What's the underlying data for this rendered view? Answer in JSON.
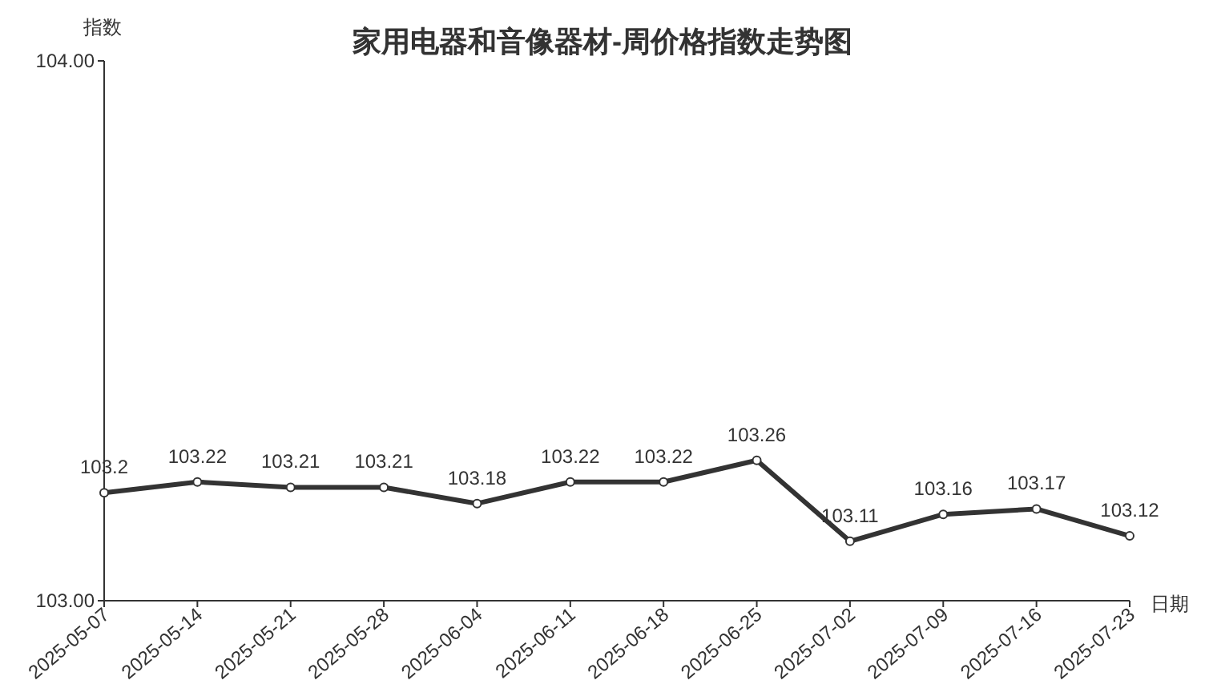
{
  "chart_data": {
    "type": "line",
    "title": "家用电器和音像器材-周价格指数走势图",
    "ylabel": "指数",
    "xlabel": "日期",
    "categories": [
      "2025-05-07",
      "2025-05-14",
      "2025-05-21",
      "2025-05-28",
      "2025-06-04",
      "2025-06-11",
      "2025-06-18",
      "2025-06-25",
      "2025-07-02",
      "2025-07-09",
      "2025-07-16",
      "2025-07-23"
    ],
    "series": [
      {
        "color": "#333333",
        "values": [
          103.2,
          103.22,
          103.21,
          103.21,
          103.18,
          103.22,
          103.22,
          103.26,
          103.11,
          103.16,
          103.17,
          103.12
        ]
      }
    ],
    "ylim": [
      103,
      104
    ],
    "yticks": [
      {
        "value": 103,
        "label": "103.00"
      },
      {
        "value": 104,
        "label": "104.00"
      }
    ],
    "data_labels": true,
    "marker": "circle",
    "grid": false
  }
}
